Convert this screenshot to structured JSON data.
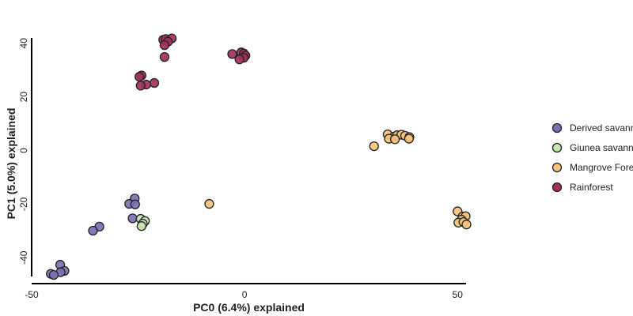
{
  "chart_data": {
    "type": "scatter",
    "title": "",
    "xlabel": "PC0 (6.4%) explained",
    "ylabel": "PC1 (5.0%) explained",
    "xlim": [
      -50,
      52
    ],
    "ylim": [
      -47,
      42
    ],
    "xticks": [
      -50,
      0,
      50
    ],
    "yticks": [
      -40,
      -20,
      0,
      20,
      40
    ],
    "grid": false,
    "legend_position": "right",
    "series": [
      {
        "name": "Derived savanna",
        "color": "#7b70b3",
        "points": [
          [
            -25.8,
            -17.9
          ],
          [
            -27.1,
            -19.9
          ],
          [
            -25.7,
            -20.1
          ],
          [
            -26.3,
            -25.3
          ],
          [
            -34.1,
            -28.4
          ],
          [
            -35.6,
            -29.9
          ],
          [
            -43.3,
            -42.6
          ],
          [
            -42.3,
            -44.9
          ],
          [
            -43.2,
            -45.4
          ],
          [
            -45.5,
            -46.0
          ],
          [
            -44.8,
            -46.4
          ]
        ]
      },
      {
        "name": "Giunea savanna",
        "color": "#c5e6b0",
        "points": [
          [
            -24.4,
            -25.5
          ],
          [
            -23.4,
            -26.3
          ],
          [
            -23.9,
            -27.3
          ],
          [
            -24.2,
            -28.2
          ]
        ]
      },
      {
        "name": "Mangrove Forest",
        "color": "#f6c27e",
        "points": [
          [
            33.6,
            6.0
          ],
          [
            35.1,
            5.2
          ],
          [
            35.8,
            5.7
          ],
          [
            36.8,
            5.9
          ],
          [
            37.7,
            5.5
          ],
          [
            38.7,
            5.0
          ],
          [
            33.9,
            4.4
          ],
          [
            35.3,
            4.2
          ],
          [
            38.6,
            4.4
          ],
          [
            30.4,
            1.6
          ],
          [
            -8.3,
            -19.9
          ],
          [
            50.0,
            -22.7
          ],
          [
            51.2,
            -24.6
          ],
          [
            51.9,
            -24.5
          ],
          [
            50.9,
            -25.8
          ],
          [
            50.2,
            -26.9
          ],
          [
            51.4,
            -26.7
          ],
          [
            52.1,
            -27.6
          ]
        ]
      },
      {
        "name": "Rainforest",
        "color": "#a3305b",
        "points": [
          [
            -19.1,
            41.3
          ],
          [
            -18.5,
            41.6
          ],
          [
            -17.1,
            41.8
          ],
          [
            -18.0,
            40.6
          ],
          [
            -18.8,
            39.3
          ],
          [
            -18.8,
            34.9
          ],
          [
            -2.9,
            36.0
          ],
          [
            -0.8,
            36.6
          ],
          [
            -0.2,
            36.2
          ],
          [
            0.2,
            35.4
          ],
          [
            -0.2,
            34.6
          ],
          [
            -1.2,
            34.0
          ],
          [
            -24.2,
            28.0
          ],
          [
            -24.7,
            27.5
          ],
          [
            -21.2,
            25.2
          ],
          [
            -23.1,
            24.6
          ],
          [
            -24.4,
            24.2
          ]
        ]
      }
    ]
  }
}
